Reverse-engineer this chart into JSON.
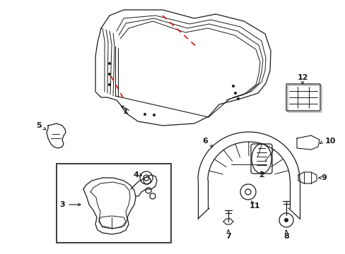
{
  "bg_color": "#ffffff",
  "line_color": "#1a1a1a",
  "red_color": "#dd0000",
  "lw": 0.9,
  "figw": 4.89,
  "figh": 3.6,
  "dpi": 100
}
